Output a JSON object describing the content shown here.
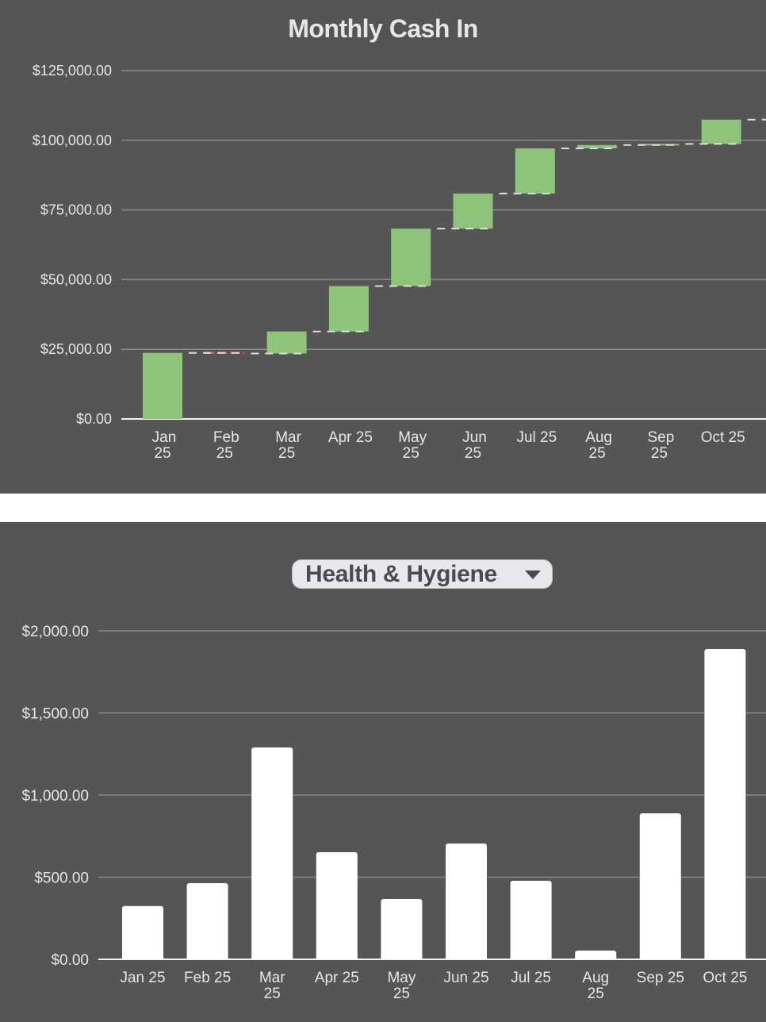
{
  "colors": {
    "background": "#555555",
    "gridline": "#8a8a8a",
    "axis_text": "#e6e6e6",
    "increase": "#8ec47a",
    "decrease": "#e0594c",
    "connector": "#dddddd",
    "bar_white": "#ffffff",
    "dropdown_bg": "#e8e8ec"
  },
  "top_chart": {
    "title": "Monthly Cash In"
  },
  "bottom_chart": {
    "dropdown": {
      "selected": "Health & Hygiene",
      "icon": "caret-down-icon"
    }
  },
  "chart_data": [
    {
      "type": "waterfall",
      "title": "Monthly Cash In",
      "xlabel": "",
      "ylabel": "",
      "ylim": [
        0,
        125000
      ],
      "yticks": [
        "$0.00",
        "$25,000.00",
        "$50,000.00",
        "$75,000.00",
        "$100,000.00",
        "$125,000.00"
      ],
      "ytick_values": [
        0,
        25000,
        50000,
        75000,
        100000,
        125000
      ],
      "grid": true,
      "categories": [
        "Jan 25",
        "Feb 25",
        "Mar 25",
        "Apr 25",
        "May 25",
        "Jun 25",
        "Jul 25",
        "Aug 25",
        "Sep 25",
        "Oct 25"
      ],
      "deltas": [
        23700,
        -200,
        7900,
        16300,
        20600,
        12600,
        16200,
        1200,
        400,
        8700
      ],
      "cumulative": [
        23700,
        23500,
        31400,
        47700,
        68300,
        80900,
        97100,
        98300,
        98700,
        107400
      ],
      "legend": "none"
    },
    {
      "type": "bar",
      "title": "Health & Hygiene",
      "xlabel": "",
      "ylabel": "",
      "ylim": [
        0,
        2000
      ],
      "yticks": [
        "$0.00",
        "$500.00",
        "$1,000.00",
        "$1,500.00",
        "$2,000.00"
      ],
      "ytick_values": [
        0,
        500,
        1000,
        1500,
        2000
      ],
      "grid": true,
      "categories": [
        "Jan 25",
        "Feb 25",
        "Mar 25",
        "Apr 25",
        "May 25",
        "Jun 25",
        "Jul 25",
        "Aug 25",
        "Sep 25",
        "Oct 25"
      ],
      "values": [
        324,
        464,
        1290,
        652,
        367,
        705,
        478,
        53,
        889,
        1889
      ],
      "legend": "none"
    }
  ]
}
